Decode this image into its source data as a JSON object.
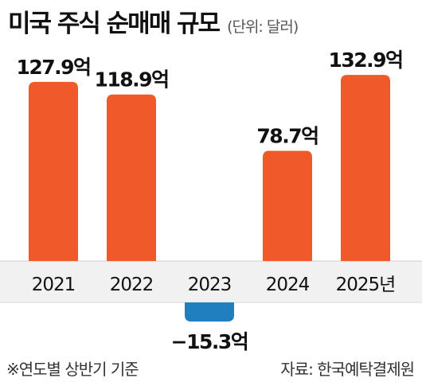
{
  "chart_data": {
    "type": "bar",
    "title": "미국 주식 순매매 규모",
    "unit_note": "(단위: 달러)",
    "categories": [
      "2021",
      "2022",
      "2023",
      "2024",
      "2025년"
    ],
    "values": [
      127.9,
      118.9,
      -15.3,
      78.7,
      132.9
    ],
    "value_labels": [
      "127.9억",
      "118.9억",
      "−15.3억",
      "78.7억",
      "132.9억"
    ],
    "colors": {
      "positive": "#f05a28",
      "negative": "#1f7fbf"
    },
    "grid": false,
    "legend": "none"
  },
  "footnote": "※연도별 상반기 기준",
  "source": "자료: 한국예탁결제원"
}
